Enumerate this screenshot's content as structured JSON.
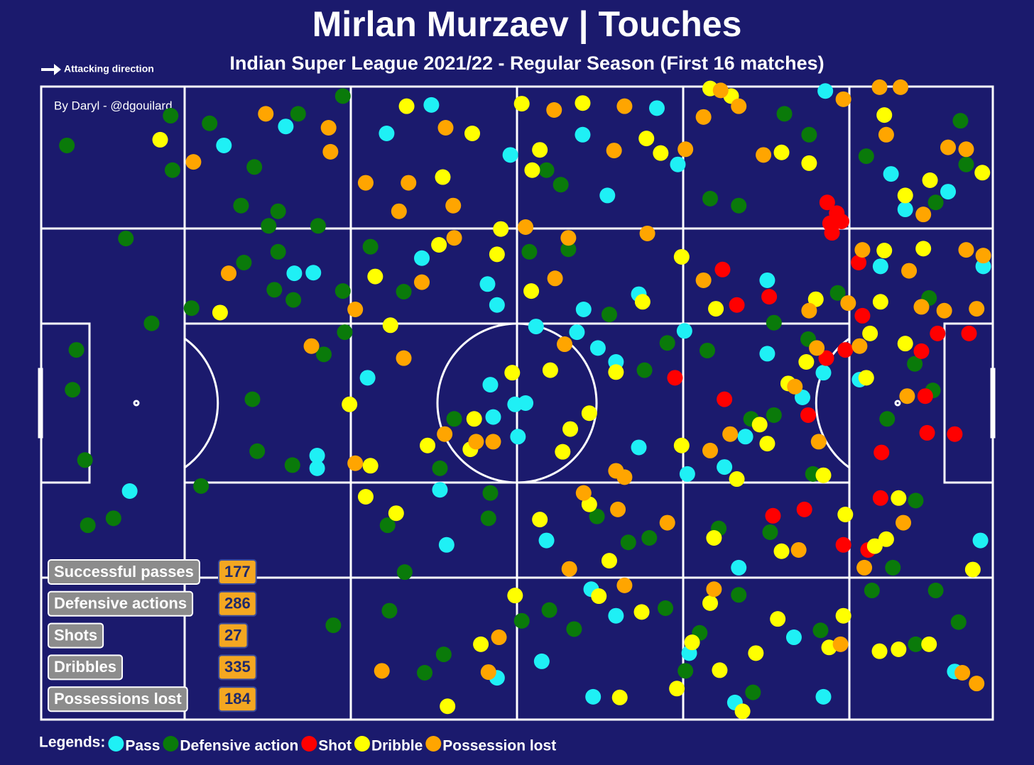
{
  "chart_data": {
    "type": "scatter",
    "title": "Mirlan Murzaev | Touches",
    "subtitle": "Indian Super League 2021/22 - Regular Season (First 16 matches)",
    "xlim": [
      0,
      100
    ],
    "ylim": [
      0,
      100
    ],
    "legend_title": "Legends:",
    "series": [
      {
        "name": "Pass",
        "color": "#1ff0f5",
        "x": [
          19.2,
          25.7,
          36.3,
          41.0,
          49.3,
          56.9,
          59.5,
          64.7,
          66.9,
          82.4,
          89.3,
          90.8,
          95.3,
          99.0,
          76.3,
          82.2,
          86.0,
          80.0,
          74.0,
          71.8,
          67.9,
          62.8,
          60.4,
          58.5,
          57.0,
          56.3,
          52.0,
          47.2,
          49.8,
          50.9,
          47.5,
          50.1,
          34.3,
          29.0,
          29.0,
          26.6,
          28.6,
          9.3,
          42.6,
          53.1,
          57.8,
          60.4,
          68.1,
          73.3,
          79.1,
          82.2,
          72.9,
          58.0,
          52.6,
          47.9,
          96.0,
          98.7,
          88.2,
          76.3,
          67.6,
          62.8,
          46.9,
          47.9,
          40.0,
          41.9
        ],
        "values": [
          90.7,
          93.7,
          92.6,
          97.1,
          89.2,
          92.4,
          82.8,
          96.6,
          87.7,
          99.3,
          86.2,
          80.6,
          83.4,
          71.6,
          57.8,
          54.8,
          53.7,
          50.9,
          44.7,
          39.9,
          38.8,
          43.0,
          56.5,
          58.7,
          64.8,
          61.2,
          62.1,
          52.9,
          49.8,
          50.0,
          47.8,
          44.7,
          54.0,
          41.7,
          39.7,
          70.5,
          70.6,
          36.1,
          27.6,
          28.3,
          20.6,
          16.4,
          10.5,
          24.0,
          13.0,
          3.6,
          2.7,
          3.6,
          9.2,
          6.6,
          7.6,
          28.3,
          71.6,
          69.4,
          61.4,
          67.2,
          68.8,
          65.5,
          72.9,
          36.3
        ]
      },
      {
        "name": "Defensive action",
        "color": "#0a7a0a",
        "x": [
          2.7,
          8.9,
          13.6,
          13.8,
          17.7,
          22.4,
          27.0,
          31.7,
          21.0,
          24.9,
          29.1,
          23.9,
          21.3,
          24.9,
          24.5,
          26.5,
          31.7,
          15.8,
          11.6,
          3.7,
          3.3,
          4.6,
          4.9,
          7.6,
          16.8,
          22.7,
          26.4,
          31.9,
          29.7,
          22.2,
          34.6,
          38.1,
          47.2,
          41.9,
          43.4,
          47.0,
          36.4,
          38.2,
          36.6,
          30.7,
          42.3,
          40.3,
          50.5,
          53.4,
          56.0,
          65.6,
          69.2,
          74.8,
          81.9,
          91.9,
          94.0,
          89.5,
          91.9,
          88.9,
          93.7,
          91.8,
          93.3,
          96.6,
          97.2,
          80.7,
          78.1,
          70.3,
          73.3,
          53.1,
          54.6,
          51.3,
          55.4,
          59.7,
          63.4,
          65.8,
          70.0,
          74.6,
          77.0,
          71.2,
          76.6,
          81.1,
          58.4,
          61.7,
          63.9,
          67.7,
          73.3,
          87.3,
          96.4,
          80.6,
          83.7,
          77.0,
          86.7,
          94.0
        ],
        "values": [
          90.7,
          76.0,
          95.4,
          86.8,
          94.2,
          87.3,
          95.7,
          98.5,
          81.2,
          80.3,
          78.0,
          78.0,
          72.2,
          73.9,
          67.9,
          66.3,
          67.7,
          65.0,
          62.6,
          58.4,
          52.1,
          41.0,
          30.7,
          31.8,
          36.9,
          42.4,
          40.2,
          61.2,
          57.7,
          50.6,
          74.7,
          67.6,
          35.8,
          39.7,
          47.5,
          31.8,
          30.7,
          23.3,
          17.2,
          14.9,
          10.3,
          7.4,
          15.6,
          17.3,
          14.3,
          17.6,
          13.7,
          4.3,
          14.1,
          11.9,
          20.4,
          24.0,
          34.6,
          47.5,
          52.0,
          56.2,
          66.6,
          94.6,
          87.7,
          92.4,
          95.7,
          82.3,
          81.2,
          86.8,
          84.5,
          73.9,
          74.3,
          64.0,
          55.2,
          59.5,
          58.3,
          47.5,
          48.1,
          30.2,
          29.6,
          38.8,
          32.1,
          28.0,
          28.7,
          7.7,
          19.7,
          20.4,
          15.4,
          60.1,
          67.4,
          62.7,
          89.0,
          81.7
        ]
      },
      {
        "name": "Shot",
        "color": "#ff0000",
        "x": [
          82.6,
          83.6,
          82.9,
          84.1,
          83.1,
          71.6,
          76.5,
          73.1,
          85.9,
          86.3,
          94.2,
          97.5,
          84.5,
          82.5,
          92.5,
          66.6,
          71.8,
          80.6,
          92.9,
          93.1,
          96.0,
          88.3,
          88.2,
          80.2,
          76.9,
          84.3,
          86.9
        ],
        "values": [
          81.7,
          80.0,
          78.4,
          78.7,
          76.9,
          71.1,
          66.8,
          65.5,
          72.2,
          63.8,
          61.0,
          61.0,
          58.4,
          57.1,
          58.2,
          54.0,
          50.6,
          48.1,
          51.1,
          45.3,
          45.1,
          42.2,
          35.0,
          33.2,
          32.2,
          27.6,
          26.8
        ]
      },
      {
        "name": "Dribble",
        "color": "#ffff00",
        "x": [
          12.5,
          18.8,
          38.4,
          42.2,
          45.3,
          50.5,
          52.4,
          51.6,
          56.9,
          63.6,
          65.1,
          70.3,
          72.5,
          77.8,
          80.7,
          88.6,
          90.8,
          93.4,
          98.9,
          88.6,
          92.7,
          88.2,
          87.1,
          90.8,
          80.4,
          78.5,
          86.7,
          75.5,
          76.3,
          82.2,
          73.1,
          67.3,
          60.4,
          55.6,
          54.8,
          57.6,
          53.5,
          49.5,
          45.5,
          45.1,
          40.6,
          34.6,
          32.4,
          36.7,
          35.1,
          41.8,
          47.9,
          48.3,
          51.5,
          63.2,
          67.3,
          70.9,
          81.4,
          87.6,
          88.8,
          97.9,
          84.3,
          82.8,
          88.1,
          90.1,
          93.3,
          75.1,
          77.4,
          70.3,
          68.4,
          71.3,
          73.7,
          60.8,
          66.8,
          63.1,
          58.6,
          59.7,
          52.4,
          57.6,
          49.8,
          46.2,
          42.7,
          37.3,
          34.1,
          70.7,
          77.8,
          90.1,
          84.5
        ],
        "values": [
          91.6,
          64.3,
          96.9,
          85.7,
          92.6,
          97.3,
          90.0,
          86.8,
          97.4,
          91.8,
          89.5,
          99.7,
          98.5,
          89.6,
          87.9,
          95.5,
          82.8,
          85.2,
          86.4,
          74.1,
          74.4,
          66.0,
          61.0,
          59.4,
          56.5,
          53.1,
          54.0,
          46.6,
          43.6,
          38.6,
          38.0,
          43.3,
          54.9,
          45.9,
          42.3,
          48.4,
          55.2,
          54.8,
          47.5,
          42.7,
          43.3,
          40.1,
          49.8,
          62.3,
          70.0,
          75.0,
          73.5,
          77.5,
          67.7,
          66.0,
          73.1,
          64.9,
          66.4,
          27.4,
          28.5,
          23.7,
          16.4,
          11.4,
          10.8,
          11.1,
          11.9,
          10.5,
          15.9,
          18.4,
          12.2,
          7.8,
          1.3,
          3.5,
          4.9,
          17.0,
          19.5,
          25.1,
          31.6,
          34.0,
          19.6,
          11.9,
          2.1,
          32.6,
          35.2,
          28.7,
          26.6,
          35.0,
          32.4
        ]
      },
      {
        "name": "Possession lost",
        "color": "#ffa500",
        "x": [
          23.6,
          30.2,
          30.4,
          16.0,
          34.1,
          37.6,
          38.6,
          42.5,
          43.3,
          53.9,
          61.3,
          60.2,
          67.7,
          69.6,
          71.4,
          73.3,
          75.9,
          84.3,
          88.1,
          90.3,
          88.8,
          95.3,
          97.2,
          92.7,
          97.2,
          99.0,
          91.2,
          98.3,
          94.9,
          92.5,
          86.3,
          84.8,
          80.7,
          81.5,
          79.2,
          86.0,
          91.0,
          81.7,
          72.4,
          70.3,
          60.4,
          61.3,
          60.6,
          65.8,
          57.0,
          55.5,
          61.3,
          70.7,
          79.6,
          90.6,
          86.5,
          84.0,
          96.8,
          98.3,
          48.1,
          47.0,
          35.8,
          33.0,
          45.7,
          47.5,
          42.4,
          38.1,
          28.4,
          33.0,
          40.0,
          19.7,
          43.4,
          50.9,
          55.4,
          54.0,
          55.0,
          69.6,
          63.7
        ],
        "values": [
          95.7,
          93.5,
          89.7,
          88.1,
          84.8,
          80.3,
          84.8,
          93.5,
          81.2,
          96.3,
          96.9,
          89.9,
          90.1,
          95.2,
          99.4,
          96.9,
          89.2,
          98.0,
          99.9,
          99.9,
          92.4,
          90.4,
          90.1,
          79.8,
          74.2,
          73.3,
          70.9,
          64.9,
          64.6,
          65.2,
          74.2,
          65.8,
          64.6,
          58.7,
          52.6,
          59.0,
          51.1,
          43.9,
          45.1,
          42.5,
          39.3,
          38.3,
          33.2,
          31.1,
          35.8,
          23.8,
          21.2,
          20.6,
          26.8,
          31.1,
          24.0,
          11.9,
          7.4,
          5.7,
          13.0,
          7.5,
          7.7,
          40.5,
          43.9,
          43.9,
          45.1,
          57.1,
          59.0,
          64.8,
          69.1,
          70.5,
          76.1,
          77.8,
          76.1,
          69.7,
          59.3,
          69.4,
          76.8
        ]
      }
    ]
  },
  "attacking_direction": "Attacking direction",
  "credit": "By Daryl - @dgouilard",
  "stats": [
    {
      "label": "Successful passes",
      "count": 177
    },
    {
      "label": "Defensive actions",
      "count": 286
    },
    {
      "label": "Shots",
      "count": 27
    },
    {
      "label": "Dribbles",
      "count": 335
    },
    {
      "label": "Possessions lost",
      "count": 184
    }
  ]
}
